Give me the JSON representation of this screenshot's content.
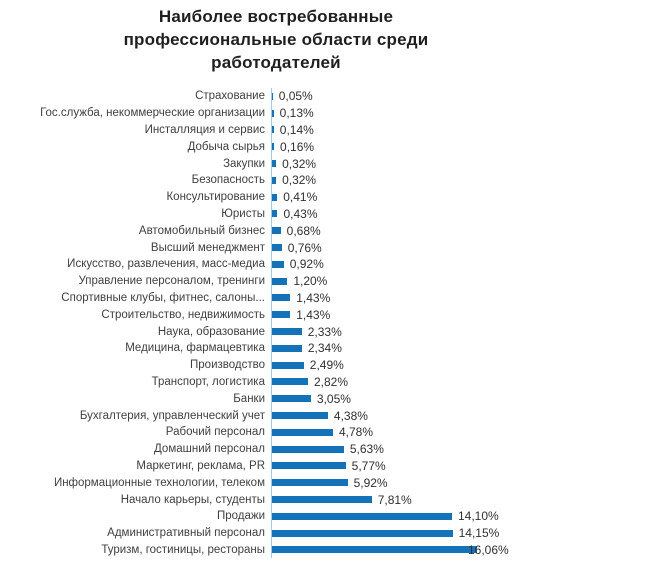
{
  "title": {
    "lines": [
      "Наиболее востребованные",
      "профессиональные области среди",
      "работодателей"
    ]
  },
  "chart_data": {
    "type": "bar",
    "orientation": "horizontal",
    "title": "Наиболее востребованные профессиональные области среди работодателей",
    "categories": [
      "Страхование",
      "Гос.служба, некоммерческие организации",
      "Инсталляция и сервис",
      "Добыча сырья",
      "Закупки",
      "Безопасность",
      "Консультирование",
      "Юристы",
      "Автомобильный бизнес",
      "Высший менеджмент",
      "Искусство, развлечения, масс-медиа",
      "Управление персоналом, тренинги",
      "Спортивные клубы, фитнес, салоны...",
      "Строительство, недвижимость",
      "Наука, образование",
      "Медицина, фармацевтика",
      "Производство",
      "Транспорт, логистика",
      "Банки",
      "Бухгалтерия, управленческий учет",
      "Рабочий персонал",
      "Домашний персонал",
      "Маркетинг, реклама, PR",
      "Информационные технологии, телеком",
      "Начало карьеры, студенты",
      "Продажи",
      "Административный персонал",
      "Туризм, гостиницы, рестораны"
    ],
    "values": [
      0.05,
      0.13,
      0.14,
      0.16,
      0.32,
      0.32,
      0.41,
      0.43,
      0.68,
      0.76,
      0.92,
      1.2,
      1.43,
      1.43,
      2.33,
      2.34,
      2.49,
      2.82,
      3.05,
      4.38,
      4.78,
      5.63,
      5.77,
      5.92,
      7.81,
      14.1,
      14.15,
      16.06
    ],
    "value_labels": [
      "0,05%",
      "0,13%",
      "0,14%",
      "0,16%",
      "0,32%",
      "0,32%",
      "0,41%",
      "0,43%",
      "0,68%",
      "0,76%",
      "0,92%",
      "1,20%",
      "1,43%",
      "1,43%",
      "2,33%",
      "2,34%",
      "2,49%",
      "2,82%",
      "3,05%",
      "4,38%",
      "4,78%",
      "5,63%",
      "5,77%",
      "5,92%",
      "7,81%",
      "14,10%",
      "14,15%",
      "16,06%"
    ],
    "bar_color": "#1472b9",
    "axis_line_color": "#a8c7e6",
    "xlabel": "",
    "ylabel": "",
    "xlim": [
      0,
      17
    ],
    "grid": false,
    "legend": "none",
    "data_labels": true
  }
}
